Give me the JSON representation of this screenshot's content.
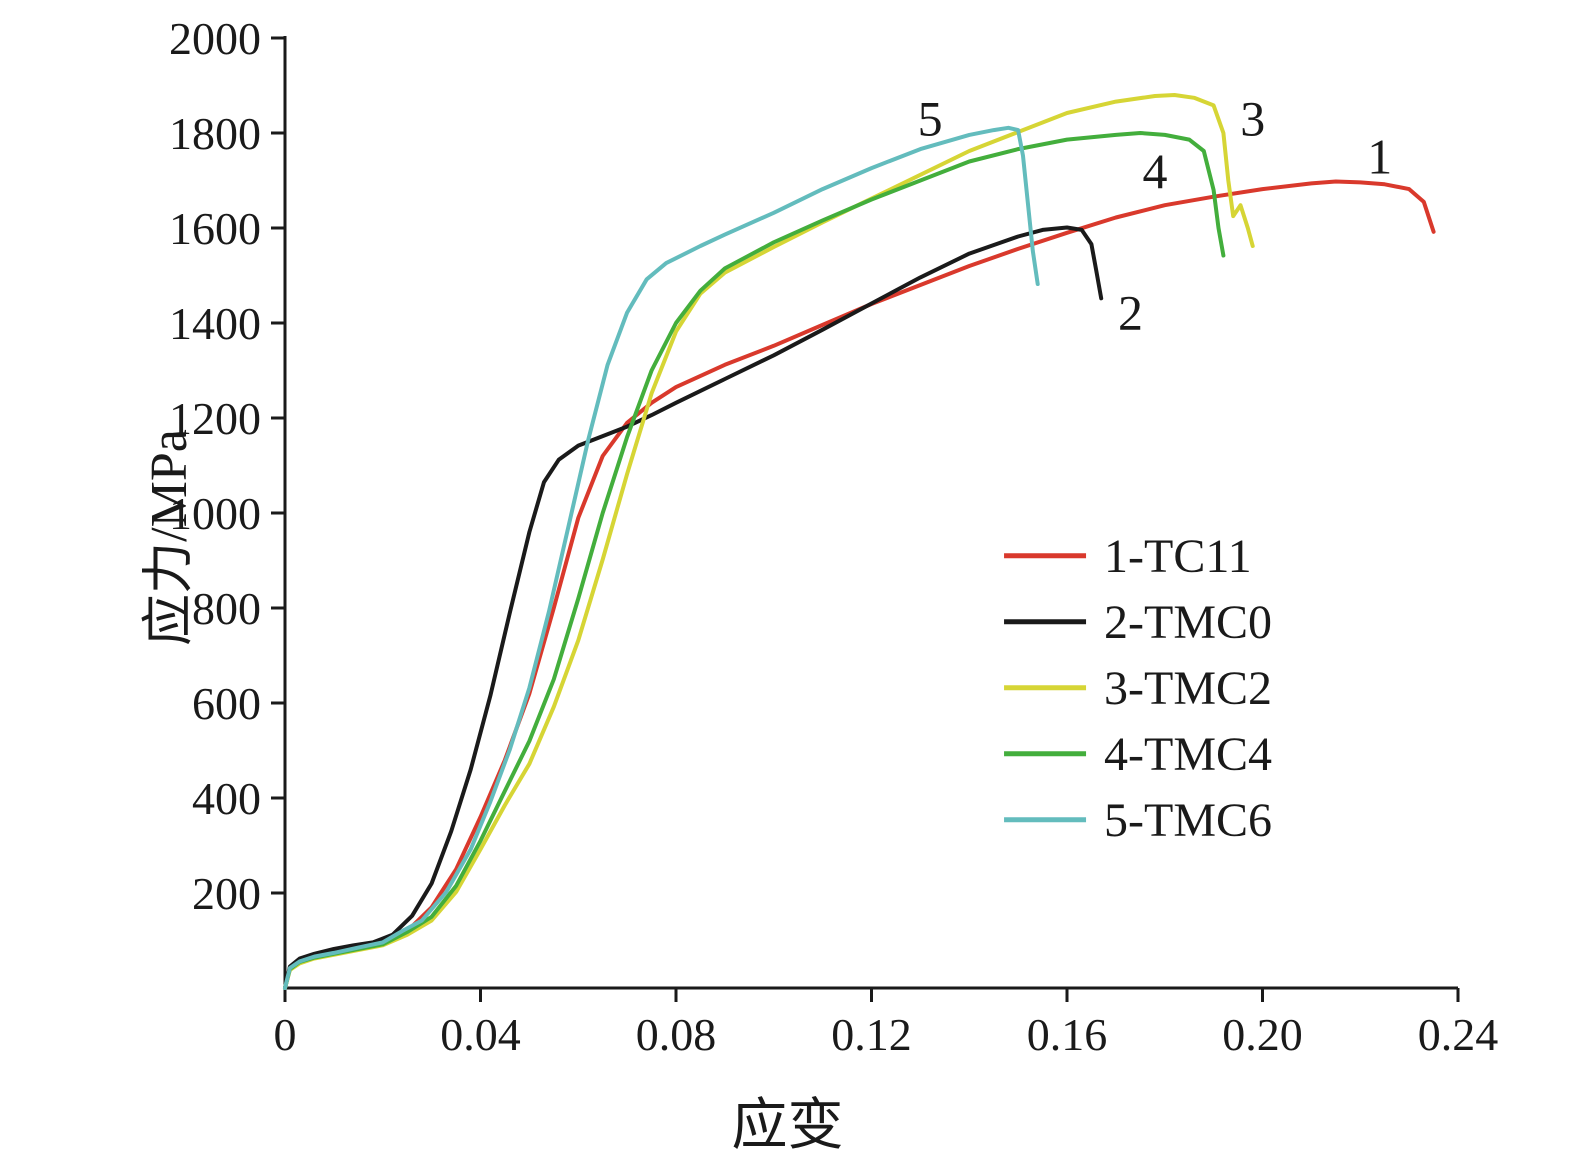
{
  "figure": {
    "xlabel": "应变",
    "ylabel": "应力/MPa"
  },
  "chart_data": {
    "type": "line",
    "title": "",
    "xlabel": "应变",
    "ylabel": "应力/MPa",
    "xlim": [
      0,
      0.24
    ],
    "ylim": [
      0,
      2000
    ],
    "grid": false,
    "legend_position": "center-right",
    "xticks": [
      0,
      0.04,
      0.08,
      0.12,
      0.16,
      0.2,
      0.24
    ],
    "xtick_labels": [
      "0",
      "0.04",
      "0.08",
      "0.12",
      "0.16",
      "0.20",
      "0.24"
    ],
    "yticks": [
      200,
      400,
      600,
      800,
      1000,
      1200,
      1400,
      1600,
      1800,
      2000
    ],
    "ytick_labels": [
      "200",
      "400",
      "600",
      "800",
      "1000",
      "1200",
      "1400",
      "1600",
      "1800",
      "2000"
    ],
    "axis_color": "#1a1a1a",
    "series": [
      {
        "name": "1-TC11",
        "color": "#d9392c",
        "annotation": {
          "text": "1",
          "x": 0.224,
          "y": 1748
        },
        "points": [
          [
            0,
            0
          ],
          [
            0.001,
            40
          ],
          [
            0.003,
            58
          ],
          [
            0.006,
            68
          ],
          [
            0.01,
            76
          ],
          [
            0.015,
            86
          ],
          [
            0.02,
            96
          ],
          [
            0.025,
            120
          ],
          [
            0.03,
            170
          ],
          [
            0.035,
            250
          ],
          [
            0.04,
            360
          ],
          [
            0.045,
            480
          ],
          [
            0.05,
            620
          ],
          [
            0.055,
            800
          ],
          [
            0.06,
            990
          ],
          [
            0.065,
            1120
          ],
          [
            0.07,
            1190
          ],
          [
            0.075,
            1232
          ],
          [
            0.08,
            1265
          ],
          [
            0.09,
            1312
          ],
          [
            0.1,
            1352
          ],
          [
            0.11,
            1396
          ],
          [
            0.12,
            1440
          ],
          [
            0.13,
            1480
          ],
          [
            0.14,
            1520
          ],
          [
            0.15,
            1556
          ],
          [
            0.16,
            1590
          ],
          [
            0.17,
            1622
          ],
          [
            0.18,
            1648
          ],
          [
            0.19,
            1666
          ],
          [
            0.2,
            1682
          ],
          [
            0.21,
            1694
          ],
          [
            0.215,
            1698
          ],
          [
            0.22,
            1696
          ],
          [
            0.225,
            1692
          ],
          [
            0.23,
            1682
          ],
          [
            0.233,
            1655
          ],
          [
            0.235,
            1592
          ]
        ]
      },
      {
        "name": "2-TMC0",
        "color": "#1a1a1a",
        "annotation": {
          "text": "2",
          "x": 0.173,
          "y": 1420
        },
        "points": [
          [
            0,
            0
          ],
          [
            0.001,
            45
          ],
          [
            0.003,
            62
          ],
          [
            0.006,
            72
          ],
          [
            0.01,
            82
          ],
          [
            0.014,
            90
          ],
          [
            0.018,
            96
          ],
          [
            0.022,
            112
          ],
          [
            0.026,
            152
          ],
          [
            0.03,
            220
          ],
          [
            0.034,
            330
          ],
          [
            0.038,
            460
          ],
          [
            0.042,
            615
          ],
          [
            0.046,
            790
          ],
          [
            0.05,
            960
          ],
          [
            0.053,
            1065
          ],
          [
            0.056,
            1112
          ],
          [
            0.06,
            1142
          ],
          [
            0.065,
            1162
          ],
          [
            0.07,
            1182
          ],
          [
            0.075,
            1206
          ],
          [
            0.08,
            1232
          ],
          [
            0.09,
            1282
          ],
          [
            0.1,
            1332
          ],
          [
            0.11,
            1386
          ],
          [
            0.12,
            1441
          ],
          [
            0.13,
            1496
          ],
          [
            0.14,
            1546
          ],
          [
            0.15,
            1582
          ],
          [
            0.155,
            1596
          ],
          [
            0.16,
            1601
          ],
          [
            0.163,
            1596
          ],
          [
            0.165,
            1566
          ],
          [
            0.166,
            1510
          ],
          [
            0.167,
            1452
          ]
        ]
      },
      {
        "name": "3-TMC2",
        "color": "#d6d535",
        "annotation": {
          "text": "3",
          "x": 0.198,
          "y": 1828
        },
        "points": [
          [
            0,
            0
          ],
          [
            0.001,
            38
          ],
          [
            0.003,
            52
          ],
          [
            0.006,
            62
          ],
          [
            0.01,
            70
          ],
          [
            0.015,
            80
          ],
          [
            0.02,
            90
          ],
          [
            0.025,
            112
          ],
          [
            0.03,
            142
          ],
          [
            0.035,
            202
          ],
          [
            0.04,
            292
          ],
          [
            0.045,
            385
          ],
          [
            0.05,
            472
          ],
          [
            0.055,
            592
          ],
          [
            0.06,
            732
          ],
          [
            0.065,
            902
          ],
          [
            0.07,
            1082
          ],
          [
            0.075,
            1252
          ],
          [
            0.08,
            1382
          ],
          [
            0.085,
            1462
          ],
          [
            0.09,
            1506
          ],
          [
            0.1,
            1560
          ],
          [
            0.11,
            1612
          ],
          [
            0.12,
            1662
          ],
          [
            0.13,
            1712
          ],
          [
            0.14,
            1762
          ],
          [
            0.15,
            1802
          ],
          [
            0.16,
            1842
          ],
          [
            0.17,
            1866
          ],
          [
            0.178,
            1878
          ],
          [
            0.182,
            1880
          ],
          [
            0.186,
            1874
          ],
          [
            0.19,
            1858
          ],
          [
            0.192,
            1800
          ],
          [
            0.193,
            1700
          ],
          [
            0.194,
            1625
          ],
          [
            0.1955,
            1648
          ],
          [
            0.197,
            1600
          ],
          [
            0.198,
            1562
          ]
        ]
      },
      {
        "name": "4-TMC4",
        "color": "#43ae3c",
        "annotation": {
          "text": "4",
          "x": 0.178,
          "y": 1718
        },
        "points": [
          [
            0,
            0
          ],
          [
            0.001,
            40
          ],
          [
            0.003,
            55
          ],
          [
            0.006,
            64
          ],
          [
            0.01,
            72
          ],
          [
            0.015,
            82
          ],
          [
            0.02,
            92
          ],
          [
            0.025,
            118
          ],
          [
            0.03,
            150
          ],
          [
            0.035,
            215
          ],
          [
            0.04,
            310
          ],
          [
            0.045,
            415
          ],
          [
            0.05,
            520
          ],
          [
            0.055,
            650
          ],
          [
            0.06,
            820
          ],
          [
            0.065,
            1000
          ],
          [
            0.07,
            1160
          ],
          [
            0.075,
            1300
          ],
          [
            0.08,
            1400
          ],
          [
            0.085,
            1468
          ],
          [
            0.09,
            1515
          ],
          [
            0.1,
            1570
          ],
          [
            0.11,
            1616
          ],
          [
            0.12,
            1660
          ],
          [
            0.13,
            1700
          ],
          [
            0.14,
            1740
          ],
          [
            0.15,
            1766
          ],
          [
            0.16,
            1786
          ],
          [
            0.17,
            1796
          ],
          [
            0.175,
            1800
          ],
          [
            0.18,
            1796
          ],
          [
            0.185,
            1786
          ],
          [
            0.188,
            1762
          ],
          [
            0.19,
            1680
          ],
          [
            0.191,
            1600
          ],
          [
            0.192,
            1542
          ]
        ]
      },
      {
        "name": "5-TMC6",
        "color": "#63bcbd",
        "annotation": {
          "text": "5",
          "x": 0.132,
          "y": 1828
        },
        "points": [
          [
            0,
            0
          ],
          [
            0.001,
            42
          ],
          [
            0.003,
            56
          ],
          [
            0.006,
            66
          ],
          [
            0.01,
            74
          ],
          [
            0.015,
            85
          ],
          [
            0.02,
            96
          ],
          [
            0.024,
            120
          ],
          [
            0.028,
            142
          ],
          [
            0.033,
            202
          ],
          [
            0.038,
            292
          ],
          [
            0.042,
            392
          ],
          [
            0.046,
            502
          ],
          [
            0.05,
            632
          ],
          [
            0.054,
            792
          ],
          [
            0.058,
            972
          ],
          [
            0.062,
            1152
          ],
          [
            0.066,
            1312
          ],
          [
            0.07,
            1422
          ],
          [
            0.074,
            1492
          ],
          [
            0.078,
            1526
          ],
          [
            0.085,
            1562
          ],
          [
            0.09,
            1586
          ],
          [
            0.1,
            1632
          ],
          [
            0.11,
            1682
          ],
          [
            0.12,
            1726
          ],
          [
            0.13,
            1766
          ],
          [
            0.14,
            1796
          ],
          [
            0.145,
            1806
          ],
          [
            0.148,
            1811
          ],
          [
            0.15,
            1806
          ],
          [
            0.151,
            1752
          ],
          [
            0.152,
            1652
          ],
          [
            0.153,
            1552
          ],
          [
            0.154,
            1482
          ]
        ]
      }
    ]
  }
}
